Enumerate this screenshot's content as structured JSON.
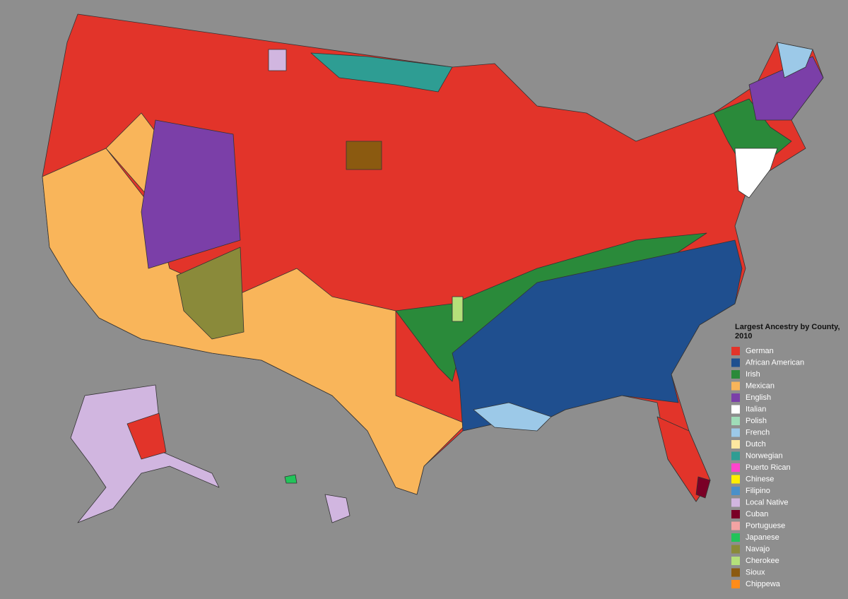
{
  "legend": {
    "title": "Largest Ancestry by County, 2010",
    "items": [
      {
        "label": "German",
        "color": "#e2342a"
      },
      {
        "label": "African American",
        "color": "#1f4f8f"
      },
      {
        "label": "Irish",
        "color": "#2a8a3a"
      },
      {
        "label": "Mexican",
        "color": "#f9b55a"
      },
      {
        "label": "English",
        "color": "#7b3fa8"
      },
      {
        "label": "Italian",
        "color": "#ffffff"
      },
      {
        "label": "Polish",
        "color": "#9fdcb8"
      },
      {
        "label": "French",
        "color": "#9cc9e8"
      },
      {
        "label": "Dutch",
        "color": "#fde8a0"
      },
      {
        "label": "Norwegian",
        "color": "#2e9d93"
      },
      {
        "label": "Puerto Rican",
        "color": "#ff44cc"
      },
      {
        "label": "Chinese",
        "color": "#ffee00"
      },
      {
        "label": "Filipino",
        "color": "#4a90c9"
      },
      {
        "label": "Local Native",
        "color": "#d1b6e0"
      },
      {
        "label": "Cuban",
        "color": "#7a0026"
      },
      {
        "label": "Portuguese",
        "color": "#f4a3a3"
      },
      {
        "label": "Japanese",
        "color": "#22c35a"
      },
      {
        "label": "Navajo",
        "color": "#8a8a3a"
      },
      {
        "label": "Cherokee",
        "color": "#b4e07a"
      },
      {
        "label": "Sioux",
        "color": "#8b5a10"
      },
      {
        "label": "Chippewa",
        "color": "#ff8c1a"
      }
    ]
  }
}
